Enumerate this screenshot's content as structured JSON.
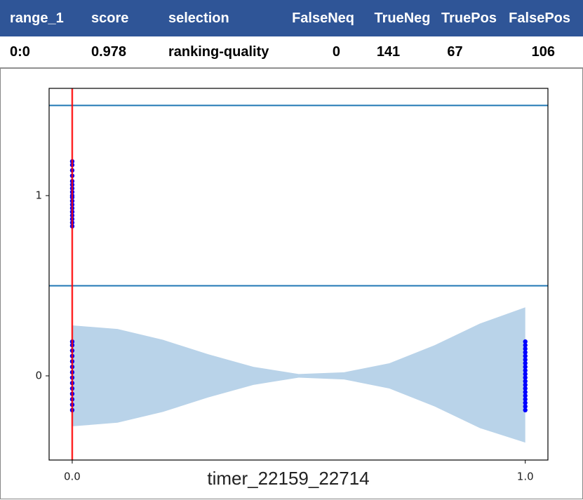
{
  "table": {
    "header": [
      "range_1",
      "score",
      "selection",
      "FalseNeq",
      "TrueNeg",
      "TruePos",
      "FalsePos"
    ],
    "rows": [
      [
        "0:0",
        "0.978",
        "ranking-quality",
        "0",
        "141",
        "67",
        "106"
      ]
    ]
  },
  "chart_data": {
    "type": "strip",
    "xlabel": "timer_22159_22714",
    "xlim": [
      -0.051,
      1.05
    ],
    "ylim": [
      -0.467,
      1.595
    ],
    "xticks": [
      {
        "value": 0,
        "label": "0.0"
      },
      {
        "value": 1,
        "label": "1.0"
      }
    ],
    "yticks": [
      0,
      1
    ],
    "hlines": [
      0.5,
      1.5
    ],
    "hline_color": "#1f77b4",
    "vline": 0,
    "vline_color": "#ff0000",
    "area": {
      "color": "#b9d3e9",
      "x": [
        0,
        0.1,
        0.2,
        0.3,
        0.4,
        0.5,
        0.6,
        0.7,
        0.8,
        0.9,
        1.0
      ],
      "upper": [
        0.28,
        0.26,
        0.2,
        0.12,
        0.05,
        0.01,
        0.02,
        0.07,
        0.17,
        0.29,
        0.38
      ],
      "lower": [
        -0.28,
        -0.26,
        -0.2,
        -0.12,
        -0.05,
        -0.01,
        -0.02,
        -0.07,
        -0.17,
        -0.29,
        -0.37
      ]
    },
    "points": {
      "color": "#0000ff",
      "x": [
        0,
        0,
        0,
        0,
        0,
        0,
        0,
        0,
        0,
        0,
        0,
        0,
        0,
        0,
        0,
        0,
        0,
        0,
        0,
        0,
        0,
        0,
        0,
        0,
        0,
        0,
        0,
        0,
        0,
        0,
        0,
        0,
        1,
        1,
        1,
        1,
        1,
        1,
        1,
        1,
        1,
        1,
        1,
        1,
        1,
        1,
        1,
        1,
        1,
        1,
        1,
        1
      ],
      "y": [
        0.83,
        0.85,
        0.87,
        0.89,
        0.91,
        0.93,
        0.95,
        0.97,
        0.99,
        1.0,
        1.02,
        1.04,
        1.06,
        1.08,
        1.11,
        1.14,
        1.17,
        1.19,
        -0.19,
        -0.16,
        -0.13,
        -0.1,
        -0.07,
        -0.04,
        -0.01,
        0.02,
        0.05,
        0.08,
        0.11,
        0.14,
        0.17,
        0.19,
        -0.19,
        -0.17,
        -0.15,
        -0.13,
        -0.11,
        -0.09,
        -0.07,
        -0.05,
        -0.03,
        -0.01,
        0.01,
        0.03,
        0.05,
        0.07,
        0.09,
        0.11,
        0.13,
        0.15,
        0.17,
        0.19
      ]
    }
  }
}
